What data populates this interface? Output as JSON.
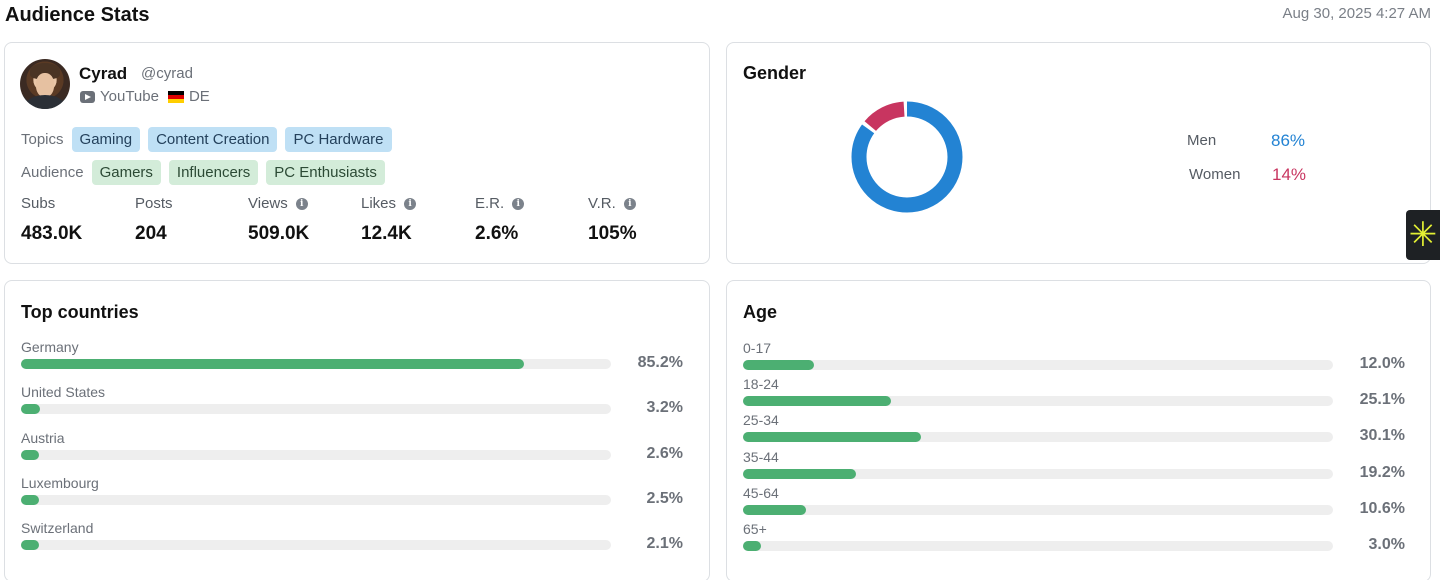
{
  "header": {
    "title": "Audience Stats",
    "timestamp": "Aug 30, 2025 4:27 AM"
  },
  "profile": {
    "name": "Cyrad",
    "handle": "@cyrad",
    "platform": "YouTube",
    "country": "DE",
    "topics_label": "Topics",
    "topics": [
      "Gaming",
      "Content Creation",
      "PC Hardware"
    ],
    "audience_label": "Audience",
    "audience": [
      "Gamers",
      "Influencers",
      "PC Enthusiasts"
    ],
    "stats": [
      {
        "label": "Subs",
        "value": "483.0K",
        "info": false
      },
      {
        "label": "Posts",
        "value": "204",
        "info": false
      },
      {
        "label": "Views",
        "value": "509.0K",
        "info": true
      },
      {
        "label": "Likes",
        "value": "12.4K",
        "info": true
      },
      {
        "label": "E.R.",
        "value": "2.6%",
        "info": true
      },
      {
        "label": "V.R.",
        "value": "105%",
        "info": true
      }
    ]
  },
  "gender": {
    "title": "Gender",
    "items": [
      {
        "label": "Men",
        "value": "86%",
        "share": 86,
        "color": "#2383d3"
      },
      {
        "label": "Women",
        "value": "14%",
        "share": 14,
        "color": "#c83560"
      }
    ]
  },
  "countries": {
    "title": "Top countries",
    "items": [
      {
        "label": "Germany",
        "value": "85.2%",
        "share": 85.2
      },
      {
        "label": "United States",
        "value": "3.2%",
        "share": 3.2
      },
      {
        "label": "Austria",
        "value": "2.6%",
        "share": 2.6
      },
      {
        "label": "Luxembourg",
        "value": "2.5%",
        "share": 2.5
      },
      {
        "label": "Switzerland",
        "value": "2.1%",
        "share": 2.1
      }
    ]
  },
  "age": {
    "title": "Age",
    "items": [
      {
        "label": "0-17",
        "value": "12.0%",
        "share": 12.0
      },
      {
        "label": "18-24",
        "value": "25.1%",
        "share": 25.1
      },
      {
        "label": "25-34",
        "value": "30.1%",
        "share": 30.1
      },
      {
        "label": "35-44",
        "value": "19.2%",
        "share": 19.2
      },
      {
        "label": "45-64",
        "value": "10.6%",
        "share": 10.6
      },
      {
        "label": "65+",
        "value": "3.0%",
        "share": 3.0
      }
    ]
  },
  "colors": {
    "bar": "#4caf72",
    "track": "#eeeeee",
    "topic_tag": "#bfe0f5",
    "audience_tag": "#d3ecd9"
  },
  "icons": {
    "platform": "youtube-icon",
    "flag": "germany-flag-icon",
    "info": "info-icon",
    "help": "help-widget-icon"
  }
}
